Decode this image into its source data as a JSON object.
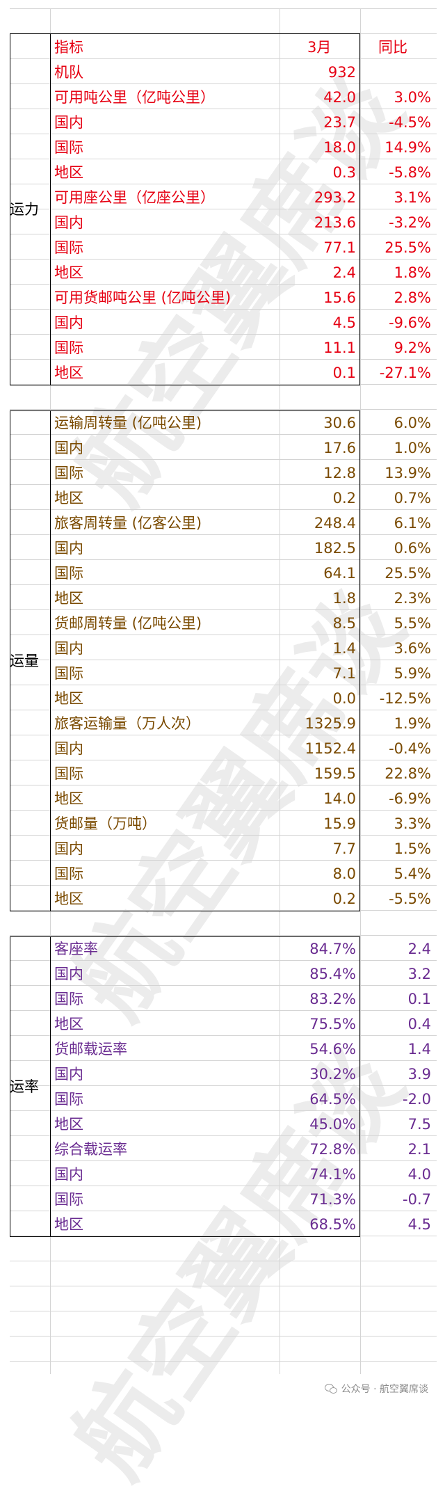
{
  "header": {
    "metric": "指标",
    "month": "3月",
    "yoy": "同比"
  },
  "sections": {
    "capacity": {
      "label": "运力",
      "color": "#e60012"
    },
    "volume": {
      "label": "运量",
      "color": "#7a4a00"
    },
    "rate": {
      "label": "运率",
      "color": "#6a2c91"
    }
  },
  "rows": [
    {
      "section": "capacity",
      "label": "机队",
      "value": "932",
      "yoy": ""
    },
    {
      "section": "capacity",
      "label": "可用吨公里（亿吨公里）",
      "value": "42.0",
      "yoy": "3.0%"
    },
    {
      "section": "capacity",
      "label": "国内",
      "value": "23.7",
      "yoy": "-4.5%"
    },
    {
      "section": "capacity",
      "label": "国际",
      "value": "18.0",
      "yoy": "14.9%"
    },
    {
      "section": "capacity",
      "label": "地区",
      "value": "0.3",
      "yoy": "-5.8%"
    },
    {
      "section": "capacity",
      "label": "可用座公里（亿座公里）",
      "value": "293.2",
      "yoy": "3.1%"
    },
    {
      "section": "capacity",
      "label": "国内",
      "value": "213.6",
      "yoy": "-3.2%"
    },
    {
      "section": "capacity",
      "label": "国际",
      "value": "77.1",
      "yoy": "25.5%"
    },
    {
      "section": "capacity",
      "label": "地区",
      "value": "2.4",
      "yoy": "1.8%"
    },
    {
      "section": "capacity",
      "label": "可用货邮吨公里 (亿吨公里)",
      "value": "15.6",
      "yoy": "2.8%"
    },
    {
      "section": "capacity",
      "label": "国内",
      "value": "4.5",
      "yoy": "-9.6%"
    },
    {
      "section": "capacity",
      "label": "国际",
      "value": "11.1",
      "yoy": "9.2%"
    },
    {
      "section": "capacity",
      "label": "地区",
      "value": "0.1",
      "yoy": "-27.1%"
    },
    {
      "section": "volume",
      "label": "运输周转量 (亿吨公里)",
      "value": "30.6",
      "yoy": "6.0%"
    },
    {
      "section": "volume",
      "label": "国内",
      "value": "17.6",
      "yoy": "1.0%"
    },
    {
      "section": "volume",
      "label": "国际",
      "value": "12.8",
      "yoy": "13.9%"
    },
    {
      "section": "volume",
      "label": "地区",
      "value": "0.2",
      "yoy": "0.7%"
    },
    {
      "section": "volume",
      "label": "旅客周转量 (亿客公里)",
      "value": "248.4",
      "yoy": "6.1%"
    },
    {
      "section": "volume",
      "label": "国内",
      "value": "182.5",
      "yoy": "0.6%"
    },
    {
      "section": "volume",
      "label": "国际",
      "value": "64.1",
      "yoy": "25.5%"
    },
    {
      "section": "volume",
      "label": "地区",
      "value": "1.8",
      "yoy": "2.3%"
    },
    {
      "section": "volume",
      "label": "货邮周转量 (亿吨公里)",
      "value": "8.5",
      "yoy": "5.5%"
    },
    {
      "section": "volume",
      "label": "国内",
      "value": "1.4",
      "yoy": "3.6%"
    },
    {
      "section": "volume",
      "label": "国际",
      "value": "7.1",
      "yoy": "5.9%"
    },
    {
      "section": "volume",
      "label": "地区",
      "value": "0.0",
      "yoy": "-12.5%"
    },
    {
      "section": "volume",
      "label": "旅客运输量（万人次）",
      "value": "1325.9",
      "yoy": "1.9%"
    },
    {
      "section": "volume",
      "label": "国内",
      "value": "1152.4",
      "yoy": "-0.4%"
    },
    {
      "section": "volume",
      "label": "国际",
      "value": "159.5",
      "yoy": "22.8%"
    },
    {
      "section": "volume",
      "label": "地区",
      "value": "14.0",
      "yoy": "-6.9%"
    },
    {
      "section": "volume",
      "label": "货邮量（万吨）",
      "value": "15.9",
      "yoy": "3.3%"
    },
    {
      "section": "volume",
      "label": "国内",
      "value": "7.7",
      "yoy": "1.5%"
    },
    {
      "section": "volume",
      "label": "国际",
      "value": "8.0",
      "yoy": "5.4%"
    },
    {
      "section": "volume",
      "label": "地区",
      "value": "0.2",
      "yoy": "-5.5%"
    },
    {
      "section": "rate",
      "label": "客座率",
      "value": "84.7%",
      "yoy": "2.4"
    },
    {
      "section": "rate",
      "label": "国内",
      "value": "85.4%",
      "yoy": "3.2"
    },
    {
      "section": "rate",
      "label": "国际",
      "value": "83.2%",
      "yoy": "0.1"
    },
    {
      "section": "rate",
      "label": "地区",
      "value": "75.5%",
      "yoy": "0.4"
    },
    {
      "section": "rate",
      "label": "货邮载运率",
      "value": "54.6%",
      "yoy": "1.4"
    },
    {
      "section": "rate",
      "label": "国内",
      "value": "30.2%",
      "yoy": "3.9"
    },
    {
      "section": "rate",
      "label": "国际",
      "value": "64.5%",
      "yoy": "-2.0"
    },
    {
      "section": "rate",
      "label": "地区",
      "value": "45.0%",
      "yoy": "7.5"
    },
    {
      "section": "rate",
      "label": "综合载运率",
      "value": "72.8%",
      "yoy": "2.1"
    },
    {
      "section": "rate",
      "label": "国内",
      "value": "74.1%",
      "yoy": "4.0"
    },
    {
      "section": "rate",
      "label": "国际",
      "value": "71.3%",
      "yoy": "-0.7"
    },
    {
      "section": "rate",
      "label": "地区",
      "value": "68.5%",
      "yoy": "4.5"
    }
  ],
  "watermark": "航空翼席谈",
  "footer": {
    "icon": "wechat-icon",
    "text": "公众号 · 航空翼席谈"
  }
}
